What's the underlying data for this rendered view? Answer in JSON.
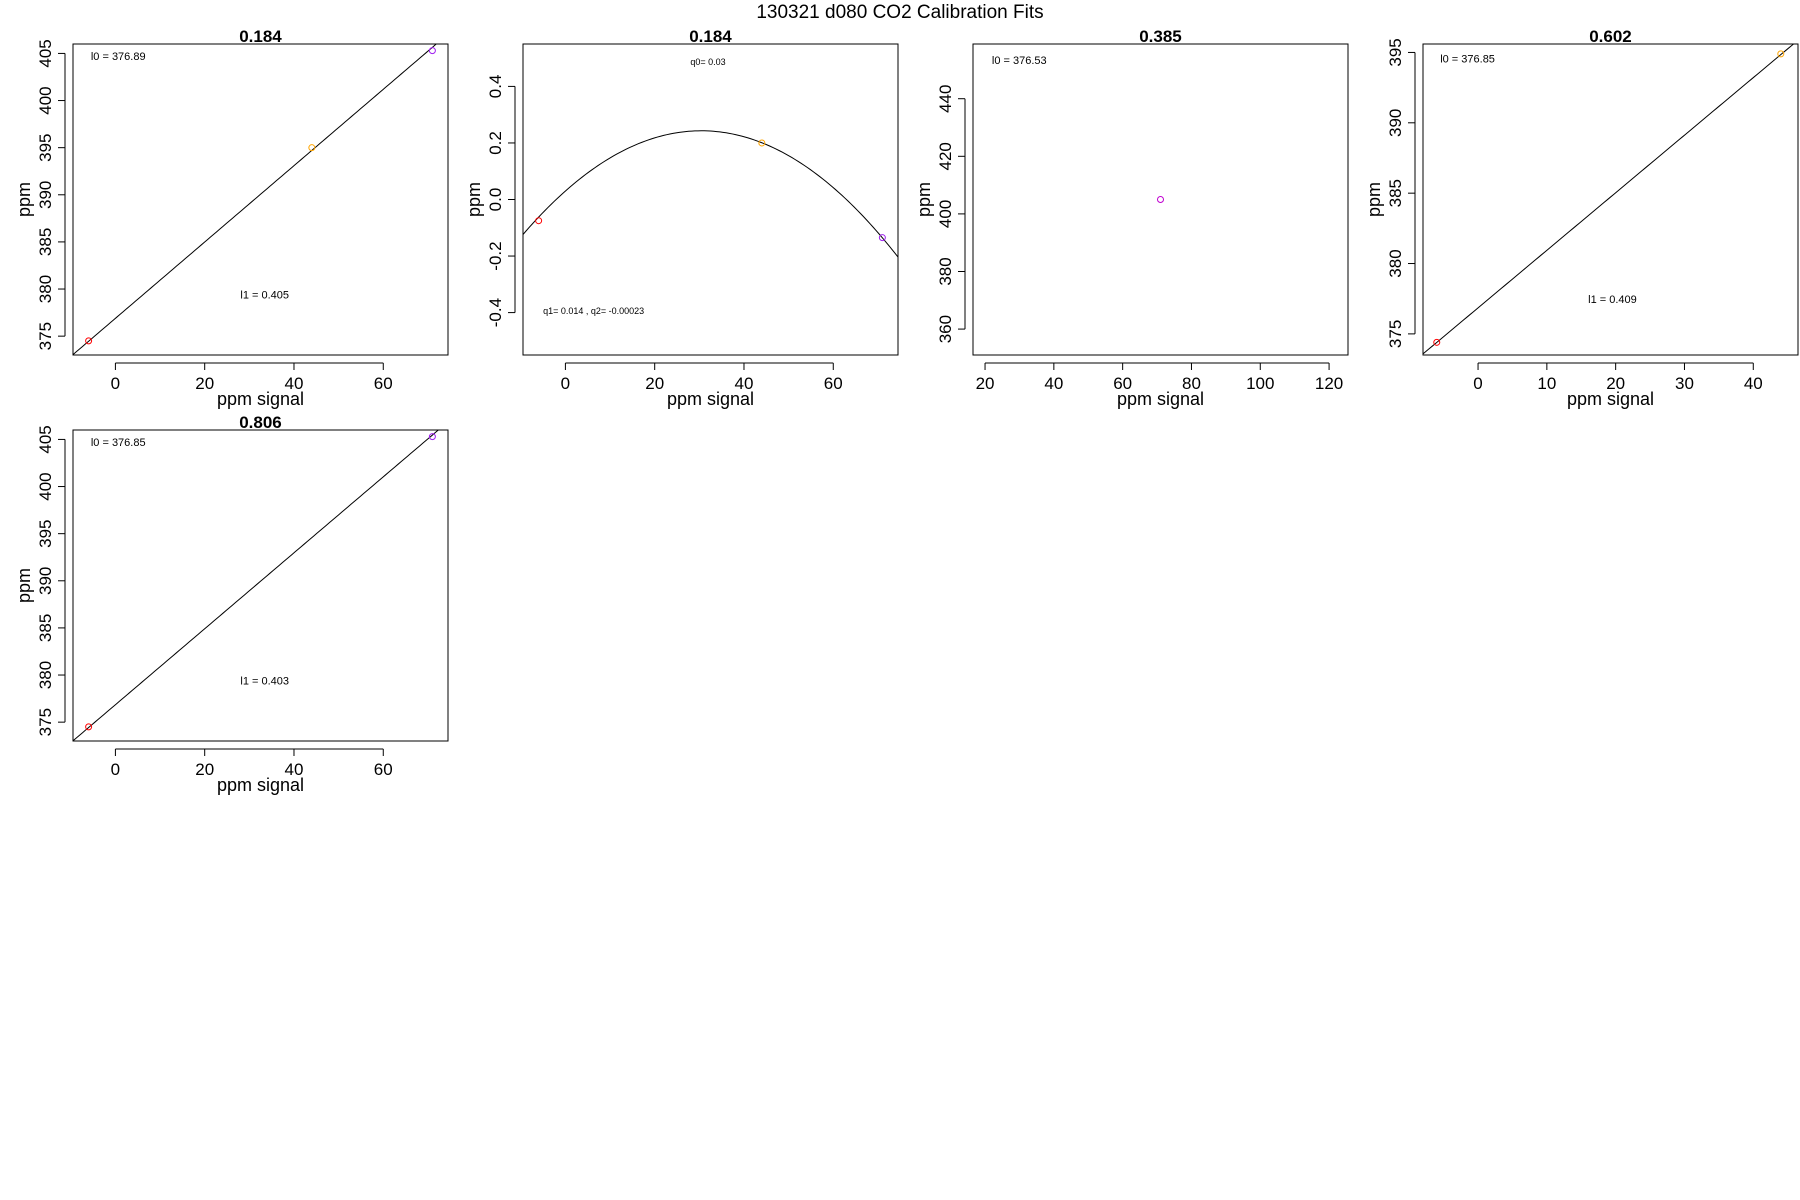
{
  "title": "130321   d080   CO2 Calibration Fits",
  "colors": {
    "red": "#ff0000",
    "orange": "#ffa500",
    "purple": "#a020f0",
    "magenta": "#c000d0",
    "axis": "#000000"
  },
  "chart_data": [
    {
      "type": "scatter",
      "title": "0.184",
      "xlabel": "ppm signal",
      "ylabel": "ppm",
      "xlim": [
        -9.5,
        74.5
      ],
      "ylim": [
        373.0,
        406.0
      ],
      "xticks": [
        0,
        20,
        40,
        60
      ],
      "yticks": [
        375,
        380,
        385,
        390,
        395,
        400,
        405
      ],
      "annotations": [
        {
          "text": "l0 =  376.89",
          "x": -5.5,
          "y": 404.3,
          "size": "normal"
        },
        {
          "text": "l1 =  0.405",
          "x": 28,
          "y": 379.0,
          "size": "normal"
        }
      ],
      "points": [
        {
          "x": -6.0,
          "y": 374.5,
          "color": "red"
        },
        {
          "x": 44.0,
          "y": 395.0,
          "color": "orange"
        },
        {
          "x": 71.0,
          "y": 405.3,
          "color": "purple"
        }
      ],
      "fit": {
        "kind": "linear",
        "coef": [
          376.89,
          0.405
        ]
      }
    },
    {
      "type": "scatter",
      "title": "0.184",
      "xlabel": "ppm signal",
      "ylabel": "ppm",
      "xlim": [
        -9.5,
        74.5
      ],
      "ylim": [
        -0.55,
        0.55
      ],
      "xticks": [
        0,
        20,
        40,
        60
      ],
      "yticks": [
        -0.4,
        -0.2,
        0.0,
        0.2,
        0.4
      ],
      "tickLabels": [
        "-0.4",
        "-0.2",
        "0.0",
        "0.2",
        "0.4"
      ],
      "annotations": [
        {
          "text": "q0= 0.03",
          "x": 28,
          "y": 0.475,
          "size": "small"
        },
        {
          "text": "q1= 0.014 , q2= -0.00023",
          "x": -5,
          "y": -0.405,
          "size": "small"
        }
      ],
      "points": [
        {
          "x": -6.0,
          "y": -0.075,
          "color": "red"
        },
        {
          "x": 44.0,
          "y": 0.2,
          "color": "orange"
        },
        {
          "x": 71.0,
          "y": -0.135,
          "color": "purple"
        }
      ],
      "fit": {
        "kind": "quadratic",
        "coef": [
          0.03,
          0.014,
          -0.00023
        ]
      }
    },
    {
      "type": "scatter",
      "title": "0.385",
      "xlabel": "ppm signal",
      "ylabel": "ppm",
      "xlim": [
        16.5,
        125.5
      ],
      "ylim": [
        351.0,
        459.0
      ],
      "xticks": [
        20,
        40,
        60,
        80,
        100,
        120
      ],
      "yticks": [
        360,
        380,
        400,
        420,
        440
      ],
      "annotations": [
        {
          "text": "l0 =  376.53",
          "x": 22,
          "y": 452.0,
          "size": "normal"
        }
      ],
      "points": [
        {
          "x": 71.0,
          "y": 405.0,
          "color": "magenta"
        }
      ],
      "fit": null
    },
    {
      "type": "scatter",
      "title": "0.602",
      "xlabel": "ppm signal",
      "ylabel": "ppm",
      "xlim": [
        -8.0,
        46.5
      ],
      "ylim": [
        373.5,
        395.6
      ],
      "xticks": [
        0,
        10,
        20,
        30,
        40
      ],
      "yticks": [
        375,
        380,
        385,
        390,
        395
      ],
      "annotations": [
        {
          "text": "l0 =  376.85",
          "x": -5.5,
          "y": 394.3,
          "size": "normal"
        },
        {
          "text": "l1 =  0.409",
          "x": 16,
          "y": 377.2,
          "size": "normal"
        }
      ],
      "points": [
        {
          "x": -6.0,
          "y": 374.4,
          "color": "red"
        },
        {
          "x": 44.0,
          "y": 394.9,
          "color": "orange"
        }
      ],
      "fit": {
        "kind": "linear",
        "coef": [
          376.85,
          0.409
        ]
      }
    },
    {
      "type": "scatter",
      "title": "0.806",
      "xlabel": "ppm signal",
      "ylabel": "ppm",
      "xlim": [
        -9.5,
        74.5
      ],
      "ylim": [
        373.0,
        406.0
      ],
      "xticks": [
        0,
        20,
        40,
        60
      ],
      "yticks": [
        375,
        380,
        385,
        390,
        395,
        400,
        405
      ],
      "annotations": [
        {
          "text": "l0 =  376.85",
          "x": -5.5,
          "y": 404.3,
          "size": "normal"
        },
        {
          "text": "l1 =  0.403",
          "x": 28,
          "y": 379.0,
          "size": "normal"
        }
      ],
      "points": [
        {
          "x": -6.0,
          "y": 374.5,
          "color": "red"
        },
        {
          "x": 71.0,
          "y": 405.3,
          "color": "purple"
        }
      ],
      "fit": {
        "kind": "linear",
        "coef": [
          376.85,
          0.403
        ]
      }
    }
  ]
}
